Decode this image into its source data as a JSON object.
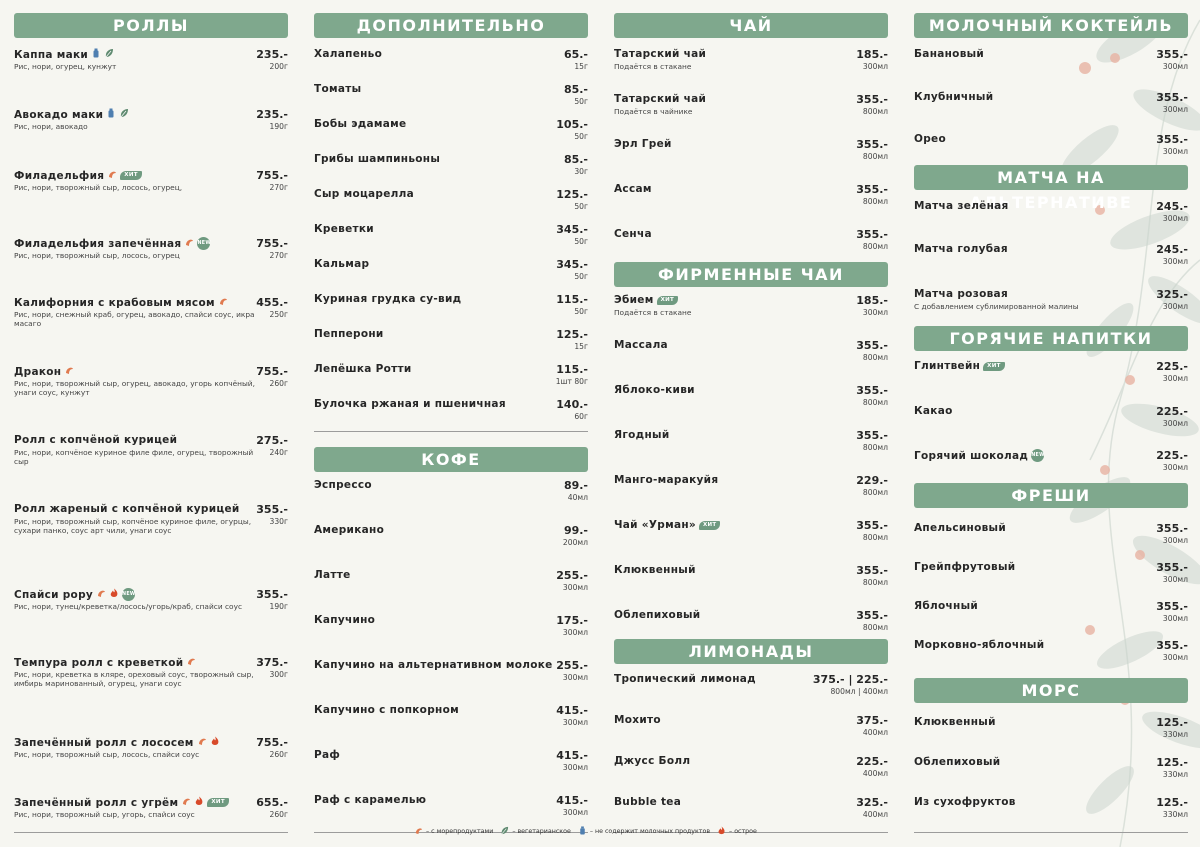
{
  "colors": {
    "header_bg": "#7fa88d",
    "seafood_icon": "#e07a4f",
    "veg_icon": "#5f8a70",
    "lactose_icon": "#4f7fb0",
    "spicy_icon": "#d84a2a",
    "badge": "#6f9a80"
  },
  "legend": {
    "seafood": "– с морепродуктами",
    "vegetarian": "– вегетарианское",
    "lactose_free": "– не содержит молочных продуктов",
    "spicy": "– острое"
  },
  "columns": [
    {
      "sections": [
        {
          "title": "Роллы",
          "items": [
            {
              "name": "Каппа маки",
              "price": "235.-",
              "weight": "200г",
              "desc": "Рис, нори, огурец, кунжут",
              "icons": [
                "lactose",
                "veg"
              ]
            },
            {
              "name": "Авокадо маки",
              "price": "235.-",
              "weight": "190г",
              "desc": "Рис, нори, авокадо",
              "icons": [
                "lactose",
                "veg"
              ]
            },
            {
              "name": "Филадельфия",
              "price": "755.-",
              "weight": "270г",
              "desc": "Рис, нори, творожный сыр, лосось, огурец,",
              "icons": [
                "seafood"
              ],
              "badge": "ХИТ"
            },
            {
              "name": "Филадельфия запечённая",
              "price": "755.-",
              "weight": "270г",
              "desc": "Рис, нори, творожный сыр, лосось, огурец",
              "icons": [
                "seafood"
              ],
              "badge": "NEW"
            },
            {
              "name": "Калифорния с крабовым мясом",
              "price": "455.-",
              "weight": "250г",
              "desc": "Рис, нори, снежный краб, огурец, авокадо, спайси соус, икра масаго",
              "icons": [
                "seafood"
              ]
            },
            {
              "name": "Дракон",
              "price": "755.-",
              "weight": "260г",
              "desc": "Рис, нори, творожный сыр, огурец, авокадо, угорь копчёный, унаги соус, кунжут",
              "icons": [
                "seafood"
              ]
            },
            {
              "name": "Ролл с копчёной курицей",
              "price": "275.-",
              "weight": "240г",
              "desc": "Рис, нори, копчёное куриное филе филе, огурец, творожный сыр",
              "icons": []
            },
            {
              "name": "Ролл жареный с копчёной курицей",
              "price": "355.-",
              "weight": "330г",
              "desc": "Рис, нори, творожный сыр, копчёное куриное филе, огурцы, сухари панко, соус арт чили, унаги соус",
              "icons": []
            },
            {
              "name": "Спайси рору",
              "price": "355.-",
              "weight": "190г",
              "desc": "Рис, нори, тунец/креветка/лосось/угорь/краб, спайси соус",
              "icons": [
                "seafood",
                "spicy"
              ],
              "badge": "NEW"
            },
            {
              "name": "Темпура ролл с креветкой",
              "price": "375.-",
              "weight": "300г",
              "desc": "Рис, нори, креветка в кляре, ореховый соус, творожный сыр, имбирь маринованный, огурец, унаги соус",
              "icons": [
                "seafood"
              ]
            },
            {
              "name": "Запечённый ролл с лососем",
              "price": "755.-",
              "weight": "260г",
              "desc": "Рис, нори, творожный сыр, лосось, спайси соус",
              "icons": [
                "seafood",
                "spicy"
              ]
            },
            {
              "name": "Запечённый ролл с угрём",
              "price": "655.-",
              "weight": "260г",
              "desc": "Рис, нори, творожный сыр, угорь, спайси соус",
              "icons": [
                "seafood",
                "spicy"
              ],
              "badge": "ХИТ"
            }
          ]
        }
      ]
    },
    {
      "sections": [
        {
          "title": "Дополнительно",
          "items": [
            {
              "name": "Халапеньо",
              "price": "65.-",
              "weight": "15г"
            },
            {
              "name": "Томаты",
              "price": "85.-",
              "weight": "50г"
            },
            {
              "name": "Бобы эдамаме",
              "price": "105.-",
              "weight": "50г"
            },
            {
              "name": "Грибы шампиньоны",
              "price": "85.-",
              "weight": "30г"
            },
            {
              "name": "Сыр моцарелла",
              "price": "125.-",
              "weight": "50г"
            },
            {
              "name": "Креветки",
              "price": "345.-",
              "weight": "50г"
            },
            {
              "name": "Кальмар",
              "price": "345.-",
              "weight": "50г"
            },
            {
              "name": "Куриная грудка су-вид",
              "price": "115.-",
              "weight": "50г"
            },
            {
              "name": "Пепперони",
              "price": "125.-",
              "weight": "15г"
            },
            {
              "name": "Лепёшка Ротти",
              "price": "115.-",
              "weight": "1шт 80г"
            },
            {
              "name": "Булочка ржаная и пшеничная",
              "price": "140.-",
              "weight": "60г"
            }
          ]
        },
        {
          "title": "Кофе",
          "items": [
            {
              "name": "Эспрессо",
              "price": "89.-",
              "weight": "40мл"
            },
            {
              "name": "Американо",
              "price": "99.-",
              "weight": "200мл"
            },
            {
              "name": "Латте",
              "price": "255.-",
              "weight": "300мл"
            },
            {
              "name": "Капучино",
              "price": "175.-",
              "weight": "300мл"
            },
            {
              "name": "Капучино на альтернативном молоке",
              "price": "255.-",
              "weight": "300мл"
            },
            {
              "name": "Капучино с попкорном",
              "price": "415.-",
              "weight": "300мл"
            },
            {
              "name": "Раф",
              "price": "415.-",
              "weight": "300мл"
            },
            {
              "name": "Раф с карамелью",
              "price": "415.-",
              "weight": "300мл"
            }
          ]
        }
      ]
    },
    {
      "sections": [
        {
          "title": "Чай",
          "items": [
            {
              "name": "Татарский чай",
              "price": "185.-",
              "weight": "300мл",
              "desc": "Подаётся в стакане"
            },
            {
              "name": "Татарский чай",
              "price": "355.-",
              "weight": "800мл",
              "desc": "Подаётся в чайнике"
            },
            {
              "name": "Эрл Грей",
              "price": "355.-",
              "weight": "800мл"
            },
            {
              "name": "Ассам",
              "price": "355.-",
              "weight": "800мл"
            },
            {
              "name": "Сенча",
              "price": "355.-",
              "weight": "800мл"
            }
          ]
        },
        {
          "title": "Фирменные чаи",
          "items": [
            {
              "name": "Эбием",
              "price": "185.-",
              "weight": "300мл",
              "desc": "Подаётся в стакане",
              "badge": "ХИТ"
            },
            {
              "name": "Массала",
              "price": "355.-",
              "weight": "800мл"
            },
            {
              "name": "Яблоко-киви",
              "price": "355.-",
              "weight": "800мл"
            },
            {
              "name": "Ягодный",
              "price": "355.-",
              "weight": "800мл"
            },
            {
              "name": "Манго-маракуйя",
              "price": "229.-",
              "weight": "800мл"
            },
            {
              "name": "Чай «Урман»",
              "price": "355.-",
              "weight": "800мл",
              "badge": "ХИТ"
            },
            {
              "name": "Клюквенный",
              "price": "355.-",
              "weight": "800мл"
            },
            {
              "name": "Облепиховый",
              "price": "355.-",
              "weight": "800мл"
            }
          ]
        },
        {
          "title": "Лимонады",
          "items": [
            {
              "name": "Тропический лимонад",
              "price": "375.- | 225.-",
              "weight": "800мл | 400мл"
            },
            {
              "name": "Мохито",
              "price": "375.-",
              "weight": "400мл"
            },
            {
              "name": "Джусс Болл",
              "price": "225.-",
              "weight": "400мл"
            },
            {
              "name": "Bubble tea",
              "price": "325.-",
              "weight": "400мл"
            }
          ]
        }
      ]
    },
    {
      "sections": [
        {
          "title": "Молочный коктейль",
          "items": [
            {
              "name": "Банановый",
              "price": "355.-",
              "weight": "300мл"
            },
            {
              "name": "Клубничный",
              "price": "355.-",
              "weight": "300мл"
            },
            {
              "name": "Орео",
              "price": "355.-",
              "weight": "300мл"
            }
          ]
        },
        {
          "title": "Матча на альтернативе",
          "items": [
            {
              "name": "Матча зелёная",
              "price": "245.-",
              "weight": "300мл"
            },
            {
              "name": "Матча голубая",
              "price": "245.-",
              "weight": "300мл"
            },
            {
              "name": "Матча розовая",
              "price": "325.-",
              "weight": "300мл",
              "desc": "С добавлением сублимированной малины"
            }
          ]
        },
        {
          "title": "Горячие напитки",
          "items": [
            {
              "name": "Глинтвейн",
              "price": "225.-",
              "weight": "300мл",
              "badge": "ХИТ"
            },
            {
              "name": "Какао",
              "price": "225.-",
              "weight": "300мл"
            },
            {
              "name": "Горячий шоколад",
              "price": "225.-",
              "weight": "300мл",
              "badge": "NEW"
            }
          ]
        },
        {
          "title": "Фреши",
          "items": [
            {
              "name": "Апельсиновый",
              "price": "355.-",
              "weight": "300мл"
            },
            {
              "name": "Грейпфрутовый",
              "price": "355.-",
              "weight": "300мл"
            },
            {
              "name": "Яблочный",
              "price": "355.-",
              "weight": "300мл"
            },
            {
              "name": "Морковно-яблочный",
              "price": "355.-",
              "weight": "300мл"
            }
          ]
        },
        {
          "title": "Морс",
          "items": [
            {
              "name": "Клюквенный",
              "price": "125.-",
              "weight": "330мл"
            },
            {
              "name": "Облепиховый",
              "price": "125.-",
              "weight": "330мл"
            },
            {
              "name": "Из сухофруктов",
              "price": "125.-",
              "weight": "330мл"
            }
          ]
        }
      ]
    }
  ]
}
